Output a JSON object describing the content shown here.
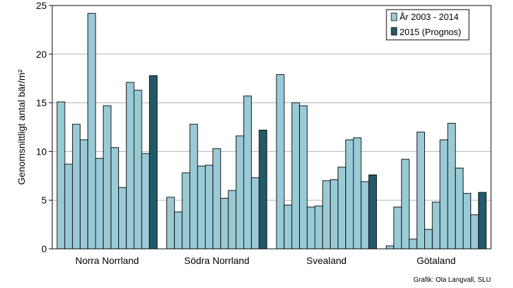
{
  "chart_data": {
    "type": "bar",
    "title": "",
    "xlabel": "",
    "ylabel": "Genomsnittligt antal bär/m²",
    "ylim": [
      0,
      25
    ],
    "yticks": [
      0,
      5,
      10,
      15,
      20,
      25
    ],
    "grid": true,
    "legend_position": "top-right",
    "categories": [
      "Norra Norrland",
      "Södra Norrland",
      "Svealand",
      "Götaland"
    ],
    "series": [
      {
        "name": "År 2003 - 2014",
        "color": "#99cad6",
        "values": [
          [
            15.1,
            8.7,
            12.8,
            11.2,
            24.2,
            9.3,
            14.7,
            10.4,
            6.3,
            17.1,
            16.3,
            9.8
          ],
          [
            5.3,
            3.8,
            7.8,
            12.8,
            8.5,
            8.6,
            10.3,
            5.2,
            6.0,
            11.6,
            15.7,
            7.3
          ],
          [
            17.9,
            4.5,
            15.0,
            14.7,
            4.3,
            4.4,
            7.0,
            7.1,
            8.4,
            11.2,
            11.4,
            6.9
          ],
          [
            0.3,
            4.3,
            9.2,
            1.0,
            12.0,
            2.0,
            4.8,
            11.2,
            12.9,
            8.3,
            5.7,
            3.5
          ]
        ]
      },
      {
        "name": "2015 (Prognos)",
        "color": "#235a6a",
        "values": [
          17.8,
          12.2,
          7.6,
          5.8
        ]
      }
    ],
    "credit": "Grafik: Ola Langvall, SLU"
  }
}
